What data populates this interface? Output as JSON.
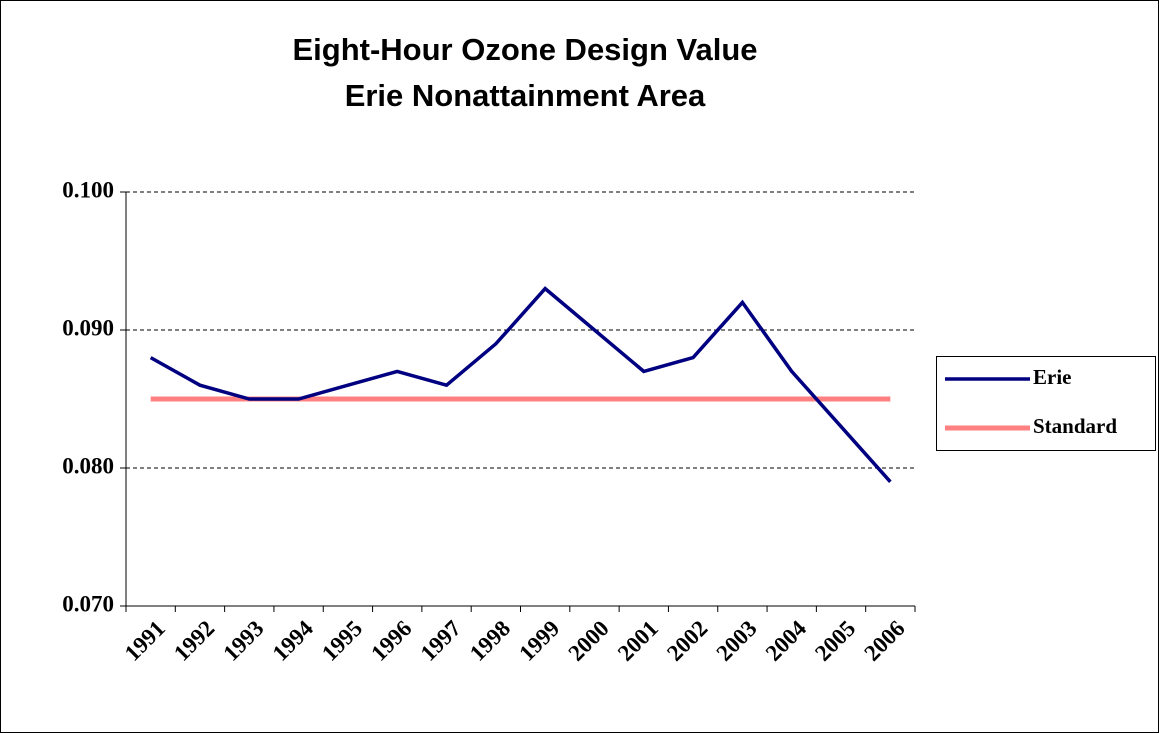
{
  "chart_data": {
    "type": "line",
    "title": "Eight-Hour Ozone Design Value",
    "subtitle": "Erie Nonattainment Area",
    "categories": [
      "1991",
      "1992",
      "1993",
      "1994",
      "1995",
      "1996",
      "1997",
      "1998",
      "1999",
      "2000",
      "2001",
      "2002",
      "2003",
      "2004",
      "2005",
      "2006"
    ],
    "series": [
      {
        "name": "Erie",
        "color": "#000080",
        "values": [
          0.088,
          0.086,
          0.085,
          0.085,
          0.086,
          0.087,
          0.086,
          0.089,
          0.093,
          0.09,
          0.087,
          0.088,
          0.092,
          0.087,
          0.083,
          0.079
        ]
      },
      {
        "name": "Standard",
        "color": "#ff8080",
        "values": [
          0.085,
          0.085,
          0.085,
          0.085,
          0.085,
          0.085,
          0.085,
          0.085,
          0.085,
          0.085,
          0.085,
          0.085,
          0.085,
          0.085,
          0.085,
          0.085
        ]
      }
    ],
    "ylim": [
      0.07,
      0.1
    ],
    "yticks": [
      {
        "value": 0.07,
        "label": "0.070"
      },
      {
        "value": 0.08,
        "label": "0.080"
      },
      {
        "value": 0.09,
        "label": "0.090"
      },
      {
        "value": 0.1,
        "label": "0.100"
      }
    ],
    "grid": true,
    "legend": "right"
  }
}
